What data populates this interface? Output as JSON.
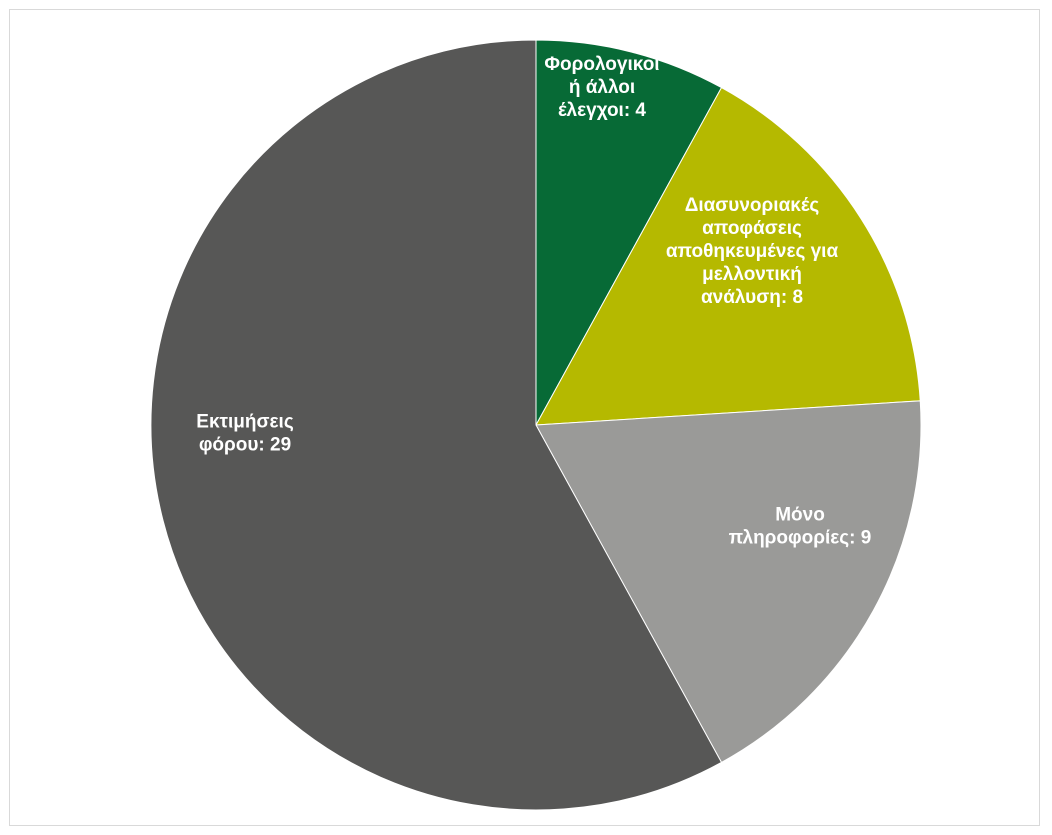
{
  "chart_data": {
    "type": "pie",
    "title": "",
    "slices": [
      {
        "label_lines": [
          "Φορολογικοί",
          "ή άλλοι",
          "έλεγχοι: 4"
        ],
        "category": "Φορολογικοί ή άλλοι έλεγχοι",
        "value": 4,
        "color": "#076a36"
      },
      {
        "label_lines": [
          "Διασυνοριακές",
          "αποφάσεις",
          "αποθηκευμένες για",
          "μελλοντική",
          "ανάλυση: 8"
        ],
        "category": "Διασυνοριακές αποφάσεις αποθηκευμένες για μελλοντική ανάλυση",
        "value": 8,
        "color": "#b5b900"
      },
      {
        "label_lines": [
          "Μόνο",
          "πληροφορίες: 9"
        ],
        "category": "Μόνο πληροφορίες",
        "value": 9,
        "color": "#9a9a98"
      },
      {
        "label_lines": [
          "Εκτιμήσεις",
          "φόρου: 29"
        ],
        "category": "Εκτιμήσεις φόρου",
        "value": 29,
        "color": "#575756"
      }
    ],
    "start": "12 o'clock",
    "direction": "clockwise",
    "legend": "none",
    "labels": "inside"
  }
}
